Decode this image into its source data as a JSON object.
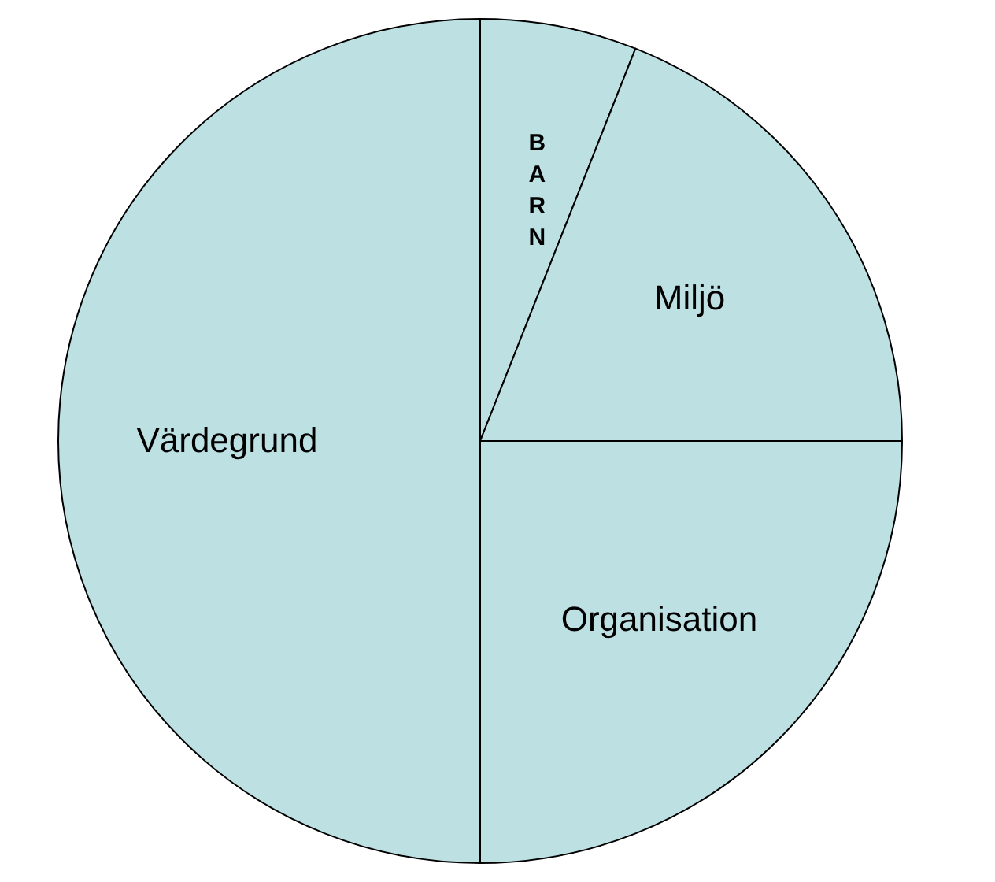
{
  "chart_data": {
    "type": "pie",
    "categories": [
      "BARN",
      "Miljö",
      "Organisation",
      "Värdegrund"
    ],
    "values": [
      6,
      19,
      25,
      50
    ],
    "colors": [
      "#bde0e3",
      "#bde0e3",
      "#bde0e3",
      "#bde0e3"
    ],
    "legend": false
  }
}
